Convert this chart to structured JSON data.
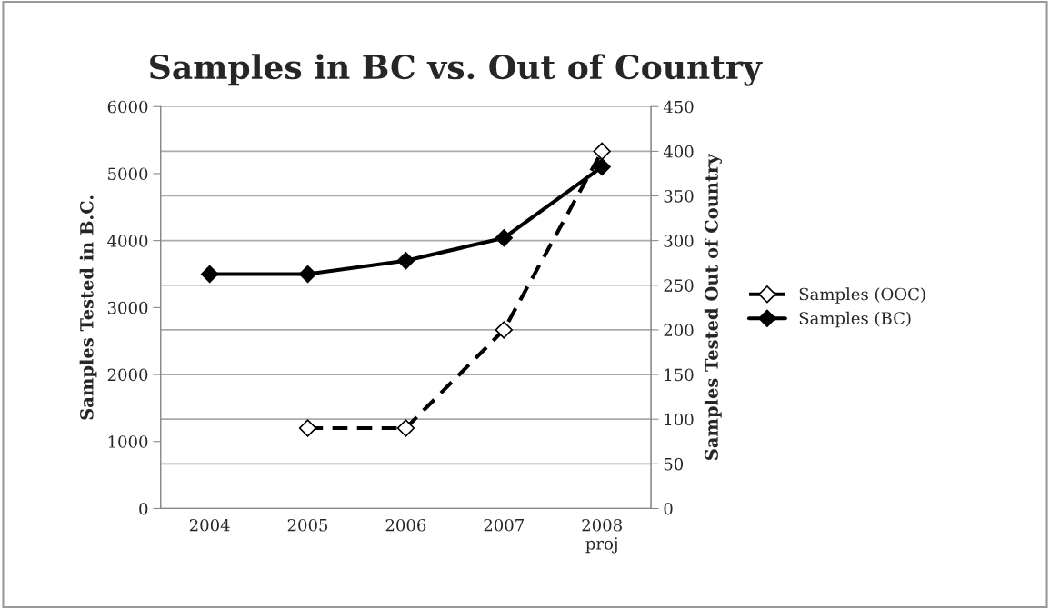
{
  "chart_data": {
    "type": "line",
    "title": "Samples in BC vs. Out of Country",
    "categories": [
      "2004",
      "2005",
      "2006",
      "2007",
      "2008\nproj"
    ],
    "ylabel": "Samples Tested in B.C.",
    "y2label": "Samples Tested Out of Country",
    "ylim": [
      0,
      6000
    ],
    "yticks": [
      0,
      1000,
      2000,
      3000,
      4000,
      5000,
      6000
    ],
    "y2lim": [
      0,
      450
    ],
    "y2ticks": [
      0,
      50,
      100,
      150,
      200,
      250,
      300,
      350,
      400,
      450
    ],
    "grid": "y",
    "legend": "right",
    "marker": "diamond",
    "series": [
      {
        "name": "Samples (OOC)",
        "color": "#000000",
        "axis": "y2",
        "line_style": "dashed",
        "values": [
          null,
          90,
          90,
          200,
          400
        ]
      },
      {
        "name": "Samples (BC)",
        "color": "#000000",
        "line_style": "solid",
        "values": [
          3500,
          3500,
          3700,
          4040,
          5100
        ]
      }
    ]
  }
}
